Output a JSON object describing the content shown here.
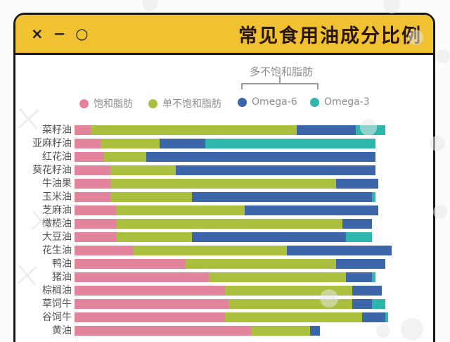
{
  "window": {
    "title": "常见食用油成分比例",
    "controls": {
      "close": "×",
      "minimize": "−",
      "maximize": "○"
    }
  },
  "legend": {
    "poly_group_label": "多不饱和脂肪",
    "items": [
      {
        "label": "饱和脂肪",
        "color": "#e2849b"
      },
      {
        "label": "单不饱和脂肪",
        "color": "#a9bf3d"
      },
      {
        "label": "Omega-6",
        "color": "#3d65aa"
      },
      {
        "label": "Omega-3",
        "color": "#2eb6ad"
      }
    ]
  },
  "chart_data": {
    "type": "bar",
    "orientation": "horizontal",
    "stacked": true,
    "unit": "percent",
    "xlim": [
      0,
      100
    ],
    "title": "常见食用油成分比例",
    "categories": [
      "菜籽油",
      "亚麻籽油",
      "红花油",
      "葵花籽油",
      "牛油果",
      "玉米油",
      "芝麻油",
      "橄榄油",
      "大豆油",
      "花生油",
      "鸭油",
      "猪油",
      "棕榈油",
      "草饲牛",
      "谷饲牛",
      "黄油"
    ],
    "series": [
      {
        "name": "饱和脂肪",
        "color": "#e2849b",
        "values": [
          5,
          8,
          9,
          11,
          11,
          11,
          13,
          13,
          13,
          18,
          34,
          41,
          46,
          47,
          46,
          54
        ]
      },
      {
        "name": "单不饱和脂肪",
        "color": "#a9bf3d",
        "values": [
          63,
          18,
          13,
          20,
          69,
          25,
          39,
          69,
          23,
          47,
          46,
          42,
          39,
          38,
          42,
          18
        ]
      },
      {
        "name": "Omega-6",
        "color": "#3d65aa",
        "values": [
          18,
          14,
          70,
          61,
          13,
          55,
          41,
          9,
          47,
          32,
          15,
          8,
          9,
          6,
          7,
          3
        ]
      },
      {
        "name": "Omega-3",
        "color": "#2eb6ad",
        "values": [
          9,
          52,
          0,
          0,
          0,
          1,
          0,
          0,
          8,
          0,
          0,
          1,
          0,
          4,
          1,
          0
        ]
      }
    ]
  }
}
